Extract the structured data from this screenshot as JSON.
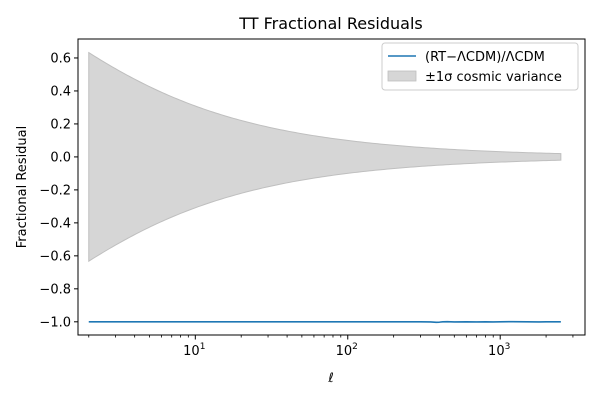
{
  "chart_data": {
    "type": "line",
    "title": "TT Fractional Residuals",
    "xlabel": "ℓ",
    "ylabel": "Fractional Residual",
    "xscale": "log",
    "xlim": [
      1.7,
      3600
    ],
    "ylim": [
      -1.08,
      0.715
    ],
    "grid": false,
    "legend_position": "top-right",
    "x_ticks": [
      {
        "value": 10,
        "base": "10",
        "exp": "1"
      },
      {
        "value": 100,
        "base": "10",
        "exp": "2"
      },
      {
        "value": 1000,
        "base": "10",
        "exp": "3"
      }
    ],
    "y_ticks": [
      {
        "value": 0.6,
        "label": "0.6"
      },
      {
        "value": 0.4,
        "label": "0.4"
      },
      {
        "value": 0.2,
        "label": "0.2"
      },
      {
        "value": 0.0,
        "label": "0.0"
      },
      {
        "value": -0.2,
        "label": "−0.2"
      },
      {
        "value": -0.4,
        "label": "−0.4"
      },
      {
        "value": -0.6,
        "label": "−0.6"
      },
      {
        "value": -0.8,
        "label": "−0.8"
      },
      {
        "value": -1.0,
        "label": "−1.0"
      }
    ],
    "series": [
      {
        "name": "(RT−ΛCDM)/ΛCDM",
        "color": "#1f77b4",
        "x": [
          2,
          5,
          10,
          30,
          100,
          200,
          300,
          350,
          380,
          400,
          420,
          450,
          500,
          600,
          700,
          800,
          900,
          1000,
          1200,
          1500,
          1800,
          2000,
          2200,
          2500
        ],
        "y": [
          -1.0,
          -1.0,
          -1.0,
          -1.0,
          -1.0,
          -1.0,
          -1.0,
          -1.001,
          -1.003,
          -1.002,
          -1.0,
          -0.999,
          -1.001,
          -1.0,
          -1.001,
          -1.0,
          -1.001,
          -1.0,
          -0.999,
          -1.0,
          -1.001,
          -1.0,
          -1.0,
          -1.0
        ]
      }
    ],
    "band": {
      "name": "±1σ cosmic variance",
      "color": "#d6d6d6",
      "edge_color": "#bfbfbf",
      "x": [
        2,
        2500
      ],
      "formula": "sqrt(2/(2ℓ+1))"
    }
  }
}
